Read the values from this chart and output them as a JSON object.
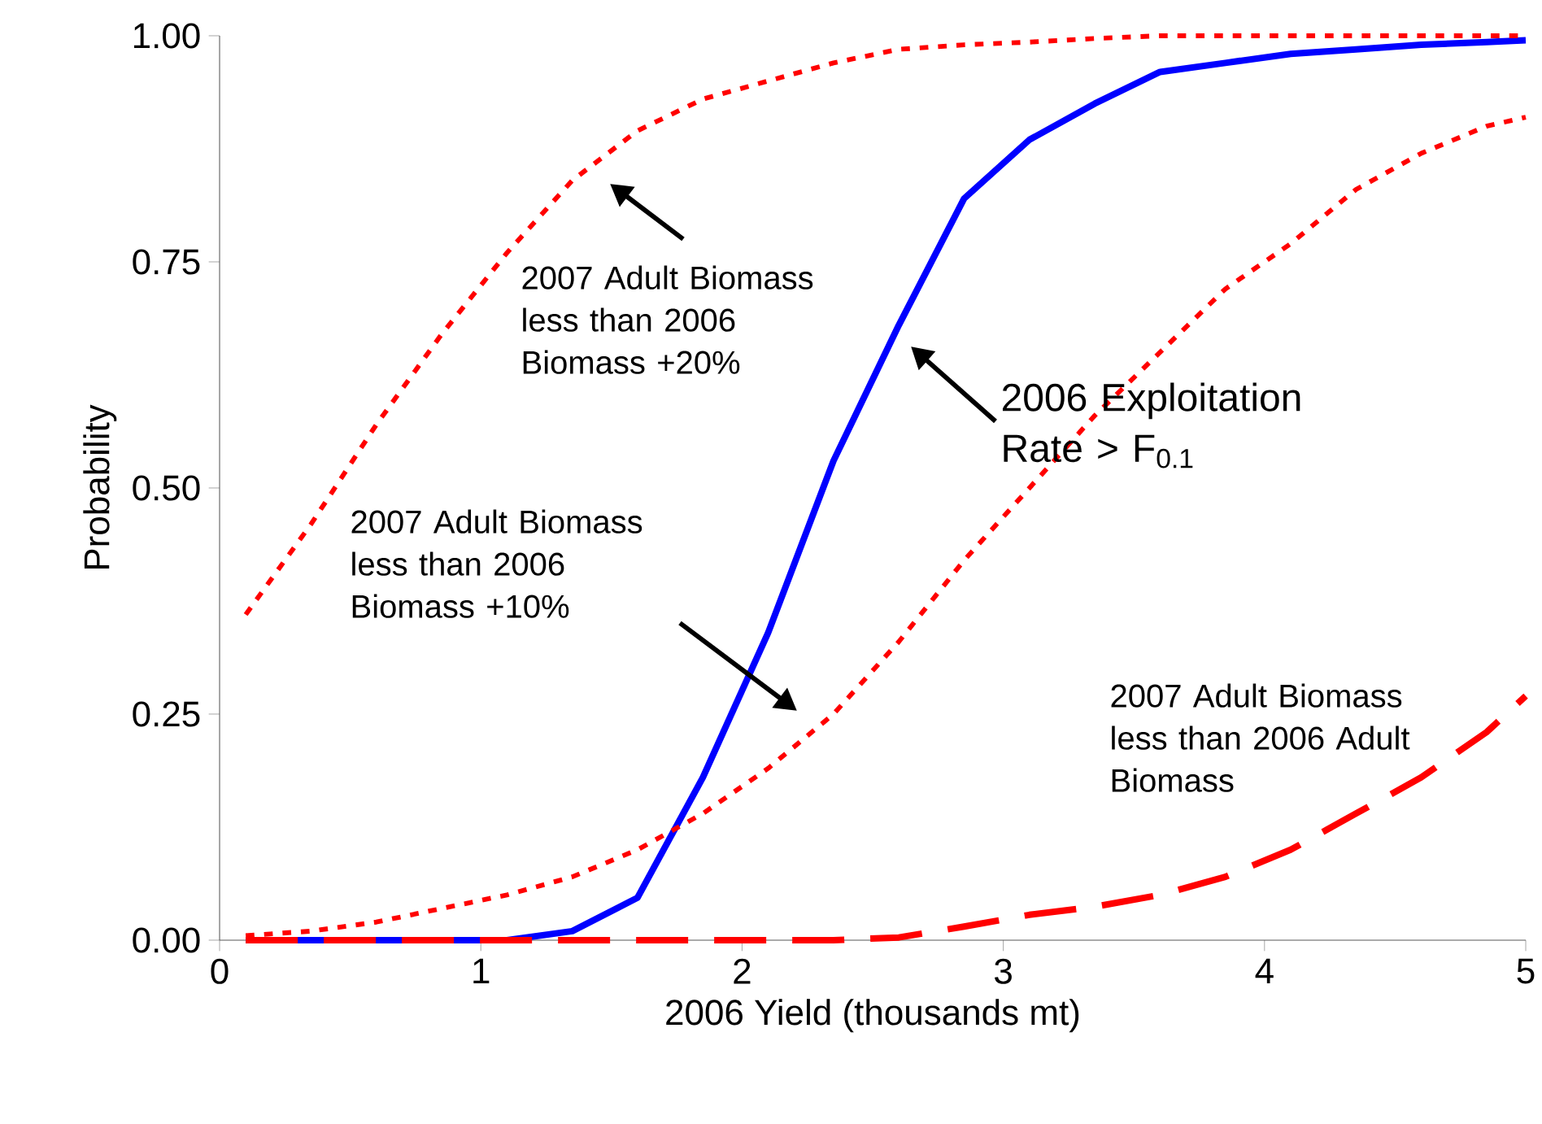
{
  "chart_data": {
    "type": "line",
    "xlabel": "2006 Yield (thousands mt)",
    "ylabel": "Probability",
    "x": [
      0.1,
      0.35,
      0.6,
      0.85,
      1.1,
      1.35,
      1.6,
      1.85,
      2.1,
      2.35,
      2.6,
      2.85,
      3.1,
      3.35,
      3.6,
      3.85,
      4.1,
      4.35,
      4.6,
      4.85,
      5.0
    ],
    "series": [
      {
        "color": "#0000ff",
        "line_style": "solid",
        "values": [
          0,
          0,
          0,
          0,
          0,
          0.01,
          0.047,
          0.18,
          0.34,
          0.53,
          0.68,
          0.82,
          0.885,
          0.925,
          0.96,
          0.97,
          0.98,
          0.985,
          0.99,
          0.993,
          0.995
        ]
      },
      {
        "color": "#ff0000",
        "line_style": "dotted",
        "values": [
          0.36,
          0.46,
          0.57,
          0.67,
          0.76,
          0.84,
          0.895,
          0.93,
          0.95,
          0.97,
          0.985,
          0.99,
          0.993,
          0.997,
          1.0,
          1.0,
          1.0,
          1.0,
          1.0,
          1.0,
          1.0
        ]
      },
      {
        "color": "#ff0000",
        "line_style": "dotted",
        "values": [
          0.005,
          0.01,
          0.02,
          0.035,
          0.05,
          0.07,
          0.1,
          0.14,
          0.19,
          0.25,
          0.33,
          0.42,
          0.5,
          0.58,
          0.65,
          0.72,
          0.77,
          0.83,
          0.87,
          0.9,
          0.91
        ]
      },
      {
        "color": "#ff0000",
        "line_style": "dashed",
        "values": [
          0,
          0,
          0,
          0,
          0,
          0,
          0,
          0,
          0,
          0,
          0.003,
          0.015,
          0.028,
          0.037,
          0.05,
          0.07,
          0.1,
          0.14,
          0.18,
          0.23,
          0.27
        ]
      }
    ],
    "xlim": [
      0,
      5
    ],
    "xticks": [
      0,
      1,
      2,
      3,
      4,
      5
    ],
    "ylim": [
      0,
      1
    ],
    "yticks": [
      {
        "value": 0,
        "label": "0.00"
      },
      {
        "value": 0.25,
        "label": "0.25"
      },
      {
        "value": 0.5,
        "label": "0.50"
      },
      {
        "value": 0.75,
        "label": "0.75"
      },
      {
        "value": 1,
        "label": "1.00"
      }
    ],
    "grid": false,
    "marker": "none",
    "annotations": [
      "2007 Adult Biomass less than 2006 Biomass +20%",
      "2006 Exploitation Rate > F$_{0.1}$",
      "2007 Adult Biomass less than 2006 Biomass +10%",
      "2007 Adult Biomass less than 2006 Adult Biomass"
    ]
  }
}
